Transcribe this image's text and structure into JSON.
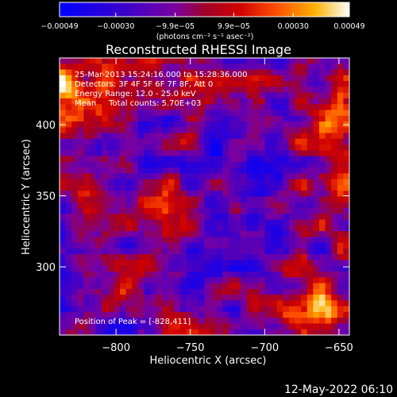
{
  "chart_data": {
    "type": "heatmap",
    "title": "Reconstructed RHESSI Image",
    "xlabel": "Heliocentric X (arcsec)",
    "ylabel": "Heliocentric Y (arcsec)",
    "xlim": [
      -838,
      -643
    ],
    "ylim": [
      252,
      447
    ],
    "x_ticks": [
      -800,
      -750,
      -700,
      -650
    ],
    "y_ticks": [
      300,
      350,
      400
    ],
    "x_tick_labels": [
      "−800",
      "−750",
      "−700",
      "−650"
    ],
    "y_tick_labels": [
      "300",
      "350",
      "400"
    ],
    "colorbar": {
      "range": [
        -0.00049,
        0.00049
      ],
      "tick_values": [
        -0.00049,
        -0.0003,
        -9.9e-05,
        9.9e-05,
        0.0003,
        0.00049
      ],
      "tick_labels": [
        "−0.00049",
        "−0.00030",
        "−9.9e−05",
        "9.9e−05",
        "0.00030",
        "0.00049"
      ],
      "unit_label": "(photons cm⁻² s⁻¹ asec⁻²)"
    },
    "annotations": [
      "25-Mar-2013 15:24:16.000 to 15:28:36.000",
      "Detectors: 3F 4F 5F 6F 7F 8F, Att 0",
      "Energy Range: 12.0 - 25.0 keV",
      "Mean     Total counts: 5.70E+03"
    ],
    "peak_text": "Position of Peak = [-828,411]",
    "peak_position": [
      -828,
      411
    ],
    "grid": false
  },
  "footer": {
    "timestamp": "12-May-2022 06:10"
  }
}
